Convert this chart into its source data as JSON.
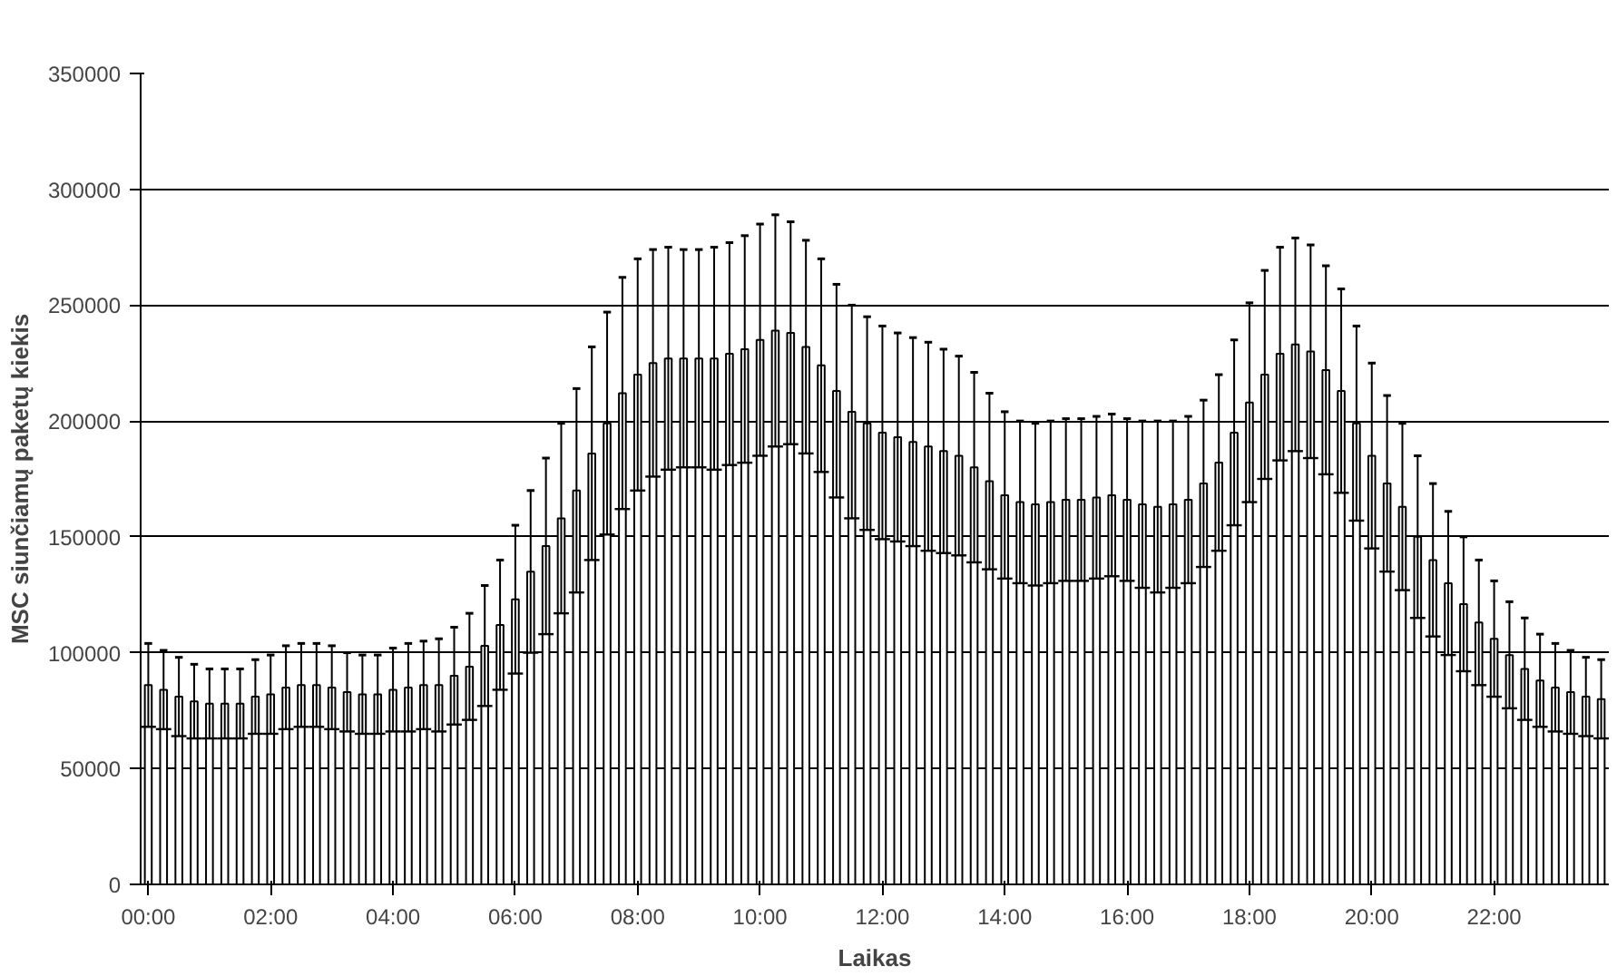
{
  "chart_data": {
    "type": "bar",
    "xlabel": "Laikas",
    "ylabel": "MSC siunčiamų paketų kiekis",
    "x": [
      0,
      0.25,
      0.5,
      0.75,
      1,
      1.25,
      1.5,
      1.75,
      2,
      2.25,
      2.5,
      2.75,
      3,
      3.25,
      3.5,
      3.75,
      4,
      4.25,
      4.5,
      4.75,
      5,
      5.25,
      5.5,
      5.75,
      6,
      6.25,
      6.5,
      6.75,
      7,
      7.25,
      7.5,
      7.75,
      8,
      8.25,
      8.5,
      8.75,
      9,
      9.25,
      9.5,
      9.75,
      10,
      10.25,
      10.5,
      10.75,
      11,
      11.25,
      11.5,
      11.75,
      12,
      12.25,
      12.5,
      12.75,
      13,
      13.25,
      13.5,
      13.75,
      14,
      14.25,
      14.5,
      14.75,
      15,
      15.25,
      15.5,
      15.75,
      16,
      16.25,
      16.5,
      16.75,
      17,
      17.25,
      17.5,
      17.75,
      18,
      18.25,
      18.5,
      18.75,
      19,
      19.25,
      19.5,
      19.75,
      20,
      20.25,
      20.5,
      20.75,
      21,
      21.25,
      21.5,
      21.75,
      22,
      22.25,
      22.5,
      22.75,
      23,
      23.25,
      23.5,
      23.75
    ],
    "values": [
      86000,
      84000,
      81000,
      79000,
      78000,
      78000,
      78000,
      81000,
      82000,
      85000,
      86000,
      86000,
      85000,
      83000,
      82000,
      82000,
      84000,
      85000,
      86000,
      86000,
      90000,
      94000,
      103000,
      112000,
      123000,
      135000,
      146000,
      158000,
      170000,
      186000,
      199000,
      212000,
      220000,
      225000,
      227000,
      227000,
      227000,
      227000,
      229000,
      231000,
      235000,
      239000,
      238000,
      232000,
      224000,
      213000,
      204000,
      199000,
      195000,
      193000,
      191000,
      189000,
      187000,
      185000,
      180000,
      174000,
      168000,
      165000,
      164000,
      165000,
      166000,
      166000,
      167000,
      168000,
      166000,
      164000,
      163000,
      164000,
      166000,
      173000,
      182000,
      195000,
      208000,
      220000,
      229000,
      233000,
      230000,
      222000,
      213000,
      199000,
      185000,
      173000,
      163000,
      150000,
      140000,
      130000,
      121000,
      113000,
      106000,
      99000,
      93000,
      88000,
      85000,
      83000,
      81000,
      80000
    ],
    "errors": [
      18000,
      17000,
      17000,
      16000,
      15000,
      15000,
      15000,
      16000,
      17000,
      18000,
      18000,
      18000,
      18000,
      17000,
      17000,
      17000,
      18000,
      19000,
      19000,
      20000,
      21000,
      23000,
      26000,
      28000,
      32000,
      35000,
      38000,
      41000,
      44000,
      46000,
      48000,
      50000,
      50000,
      49000,
      48000,
      47000,
      47000,
      48000,
      48000,
      49000,
      50000,
      50000,
      48000,
      46000,
      46000,
      46000,
      46000,
      46000,
      46000,
      45000,
      45000,
      45000,
      44000,
      43000,
      41000,
      38000,
      36000,
      35000,
      35000,
      35000,
      35000,
      35000,
      35000,
      35000,
      35000,
      36000,
      37000,
      36000,
      36000,
      36000,
      38000,
      40000,
      43000,
      45000,
      46000,
      46000,
      46000,
      45000,
      44000,
      42000,
      40000,
      38000,
      36000,
      35000,
      33000,
      31000,
      29000,
      27000,
      25000,
      23000,
      22000,
      20000,
      19000,
      18000,
      17000,
      17000
    ],
    "color": "#ffffff",
    "xlim": [
      -0.125,
      23.875
    ],
    "xticks": [
      {
        "value": 0,
        "label": "00:00"
      },
      {
        "value": 2,
        "label": "02:00"
      },
      {
        "value": 4,
        "label": "04:00"
      },
      {
        "value": 6,
        "label": "06:00"
      },
      {
        "value": 8,
        "label": "08:00"
      },
      {
        "value": 10,
        "label": "10:00"
      },
      {
        "value": 12,
        "label": "12:00"
      },
      {
        "value": 14,
        "label": "14:00"
      },
      {
        "value": 16,
        "label": "16:00"
      },
      {
        "value": 18,
        "label": "18:00"
      },
      {
        "value": 20,
        "label": "20:00"
      },
      {
        "value": 22,
        "label": "22:00"
      }
    ],
    "ylim": [
      0,
      350000
    ],
    "yticks": [
      0,
      50000,
      100000,
      150000,
      200000,
      250000,
      300000,
      350000
    ],
    "grid": "y"
  }
}
